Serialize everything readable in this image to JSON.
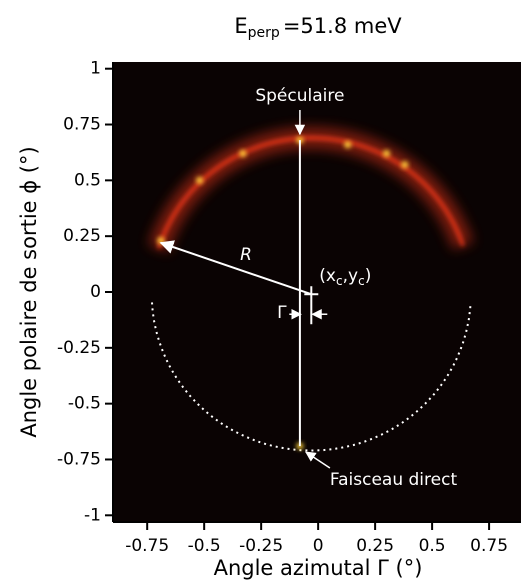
{
  "chart_data": {
    "type": "ring",
    "title": [
      "E",
      "perp",
      "=51.8 meV"
    ],
    "xlabel": "Angle azimutal Γ (°)",
    "ylabel": "Angle polaire de sortie ϕ (°)",
    "xlim": [
      -0.9,
      0.89
    ],
    "ylim": [
      -1.03,
      1.03
    ],
    "xticks": [
      -0.75,
      -0.5,
      -0.25,
      0,
      0.25,
      0.5,
      0.75
    ],
    "yticks": [
      1,
      0.75,
      0.5,
      0.25,
      0,
      -0.25,
      -0.5,
      -0.75,
      -1
    ],
    "ring": {
      "center": [
        -0.03,
        -0.01
      ],
      "radius": 0.7,
      "arc_solid": [
        18,
        163
      ],
      "arc_dashed": [
        183,
        357
      ],
      "color": "#ff3a1a"
    },
    "spots": {
      "x": [
        -0.52,
        0.13,
        -0.08,
        -0.69,
        -0.33,
        0.3,
        0.38,
        -0.08
      ],
      "y": [
        0.5,
        0.66,
        0.68,
        0.23,
        0.62,
        0.62,
        0.57,
        -0.69
      ],
      "color": "#ffd23a"
    },
    "vertical_line_x": -0.08,
    "r_arrow_end": [
      -0.69,
      0.22
    ],
    "annotations": {
      "specular": "Spéculaire",
      "direct": "Faisceau direct",
      "r": "R",
      "center": [
        "(x",
        "c",
        ",y",
        "c",
        ")"
      ],
      "gamma": "Γ"
    }
  }
}
